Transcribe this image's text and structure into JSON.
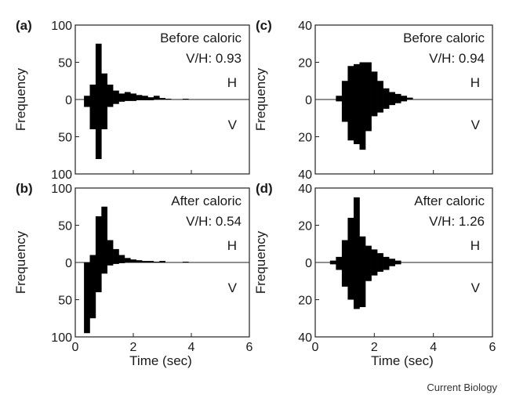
{
  "chart_data": [
    {
      "type": "bar",
      "panel": "(a)",
      "label_top": "Before caloric",
      "ratio": "V/H: 0.93",
      "half_labels": [
        "H",
        "V"
      ],
      "ylabel": "Frequency",
      "xlabel": "",
      "xlim": [
        0,
        6
      ],
      "ylim": [
        -100,
        100
      ],
      "x_ticks": [
        "0",
        "2",
        "4",
        "6"
      ],
      "y_ticks": [
        {
          "value": 100,
          "label": "100"
        },
        {
          "value": 50,
          "label": "50"
        },
        {
          "value": 0,
          "label": "0"
        },
        {
          "value": -50,
          "label": "50"
        },
        {
          "value": -100,
          "label": "100"
        }
      ],
      "bin_width": 0.2,
      "x": [
        0.4,
        0.6,
        0.8,
        1.0,
        1.2,
        1.4,
        1.6,
        1.8,
        2.0,
        2.2,
        2.4,
        2.6,
        2.8,
        3.0,
        3.2,
        3.4,
        3.6,
        3.8,
        4.0
      ],
      "series": [
        {
          "name": "H",
          "values": [
            5,
            20,
            75,
            35,
            20,
            12,
            8,
            10,
            8,
            6,
            5,
            3,
            5,
            2,
            1,
            0,
            0,
            1,
            0
          ]
        },
        {
          "name": "V",
          "values": [
            10,
            40,
            80,
            40,
            10,
            6,
            3,
            2,
            2,
            1,
            1,
            1,
            0,
            0,
            0,
            0,
            0,
            0,
            0
          ]
        }
      ]
    },
    {
      "type": "bar",
      "panel": "(b)",
      "label_top": "After caloric",
      "ratio": "V/H: 0.54",
      "half_labels": [
        "H",
        "V"
      ],
      "ylabel": "Frequency",
      "xlabel": "Time (sec)",
      "xlim": [
        0,
        6
      ],
      "ylim": [
        -100,
        100
      ],
      "x_ticks": [
        "0",
        "2",
        "4",
        "6"
      ],
      "y_ticks": [
        {
          "value": 100,
          "label": "100"
        },
        {
          "value": 50,
          "label": "50"
        },
        {
          "value": 0,
          "label": "0"
        },
        {
          "value": -50,
          "label": "50"
        },
        {
          "value": -100,
          "label": "100"
        }
      ],
      "bin_width": 0.2,
      "x": [
        0.4,
        0.6,
        0.8,
        1.0,
        1.2,
        1.4,
        1.6,
        1.8,
        2.0,
        2.2,
        2.4,
        2.6,
        2.8,
        3.0,
        3.2,
        3.4,
        3.6,
        3.8,
        4.0
      ],
      "series": [
        {
          "name": "H",
          "values": [
            0,
            10,
            62,
            75,
            30,
            18,
            10,
            6,
            4,
            3,
            2,
            2,
            1,
            2,
            0,
            0,
            0,
            1,
            0
          ]
        },
        {
          "name": "V",
          "values": [
            95,
            75,
            40,
            15,
            4,
            2,
            1,
            0,
            0,
            0,
            0,
            0,
            0,
            0,
            0,
            0,
            0,
            0,
            0
          ]
        }
      ]
    },
    {
      "type": "bar",
      "panel": "(c)",
      "label_top": "Before caloric",
      "ratio": "V/H: 0.94",
      "half_labels": [
        "H",
        "V"
      ],
      "ylabel": "Frequency",
      "xlabel": "",
      "xlim": [
        0,
        6
      ],
      "ylim": [
        -40,
        40
      ],
      "x_ticks": [
        "0",
        "2",
        "4",
        "6"
      ],
      "y_ticks": [
        {
          "value": 40,
          "label": "40"
        },
        {
          "value": 20,
          "label": "20"
        },
        {
          "value": 0,
          "label": "0"
        },
        {
          "value": -20,
          "label": "20"
        },
        {
          "value": -40,
          "label": "40"
        }
      ],
      "bin_width": 0.2,
      "x": [
        0.8,
        1.0,
        1.2,
        1.4,
        1.6,
        1.8,
        2.0,
        2.2,
        2.4,
        2.6,
        2.8,
        3.0,
        3.2
      ],
      "series": [
        {
          "name": "H",
          "values": [
            2,
            10,
            18,
            19,
            20,
            20,
            15,
            10,
            6,
            4,
            3,
            2,
            1
          ]
        },
        {
          "name": "V",
          "values": [
            1,
            12,
            22,
            24,
            27,
            17,
            9,
            7,
            5,
            3,
            2,
            1,
            0
          ]
        }
      ]
    },
    {
      "type": "bar",
      "panel": "(d)",
      "label_top": "After caloric",
      "ratio": "V/H: 1.26",
      "half_labels": [
        "H",
        "V"
      ],
      "ylabel": "Frequency",
      "xlabel": "Time (sec)",
      "xlim": [
        0,
        6
      ],
      "ylim": [
        -40,
        40
      ],
      "x_ticks": [
        "0",
        "2",
        "4",
        "6"
      ],
      "y_ticks": [
        {
          "value": 40,
          "label": "40"
        },
        {
          "value": 20,
          "label": "20"
        },
        {
          "value": 0,
          "label": "0"
        },
        {
          "value": -20,
          "label": "20"
        },
        {
          "value": -40,
          "label": "40"
        }
      ],
      "bin_width": 0.2,
      "x": [
        0.6,
        0.8,
        1.0,
        1.2,
        1.4,
        1.6,
        1.8,
        2.0,
        2.2,
        2.4,
        2.6,
        2.8,
        3.0
      ],
      "series": [
        {
          "name": "H",
          "values": [
            1,
            3,
            12,
            24,
            35,
            14,
            9,
            7,
            5,
            3,
            2,
            1,
            0
          ]
        },
        {
          "name": "V",
          "values": [
            1,
            4,
            13,
            20,
            25,
            24,
            10,
            7,
            5,
            4,
            2,
            1,
            0
          ]
        }
      ]
    }
  ],
  "credit": "Current Biology"
}
